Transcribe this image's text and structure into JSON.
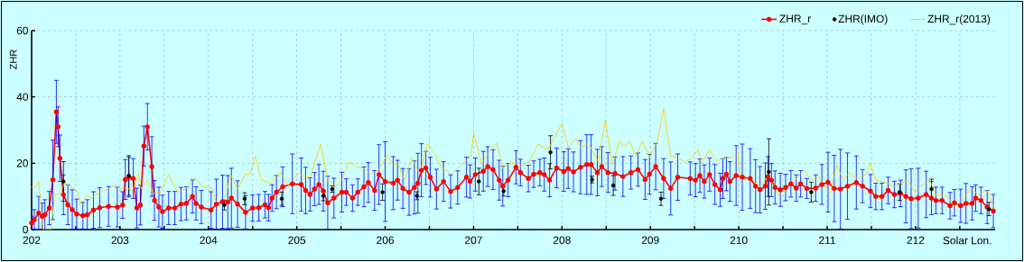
{
  "chart_data": {
    "type": "line",
    "xlabel": "Solar Lon.",
    "ylabel": "ZHR",
    "xlim": [
      202,
      212.9
    ],
    "ylim": [
      0,
      60
    ],
    "xticks": [
      202,
      {
        "value": 202.5,
        "label": null
      },
      203,
      {
        "value": 203.5,
        "label": null
      },
      204,
      {
        "value": 204.5,
        "label": null
      },
      205,
      {
        "value": 205.5,
        "label": null
      },
      206,
      {
        "value": 206.5,
        "label": null
      },
      207,
      {
        "value": 207.5,
        "label": null
      },
      208,
      {
        "value": 208.5,
        "label": null
      },
      209,
      {
        "value": 209.5,
        "label": null
      },
      210,
      {
        "value": 210.5,
        "label": null
      },
      211,
      {
        "value": 211.5,
        "label": null
      },
      212,
      {
        "value": 212.5,
        "label": null
      }
    ],
    "yticks": [
      0,
      20,
      40,
      60
    ],
    "grid": true,
    "legend": "top right",
    "series": [
      {
        "name": "ZHR_r",
        "color": "#ff0000",
        "marker": "circle",
        "x": [
          202.0,
          202.03,
          202.08,
          202.12,
          202.15,
          202.2,
          202.24,
          202.28,
          202.3,
          202.32,
          202.36,
          202.41,
          202.46,
          202.51,
          202.58,
          202.63,
          202.7,
          202.77,
          202.87,
          202.97,
          203.03,
          203.06,
          203.1,
          203.15,
          203.19,
          203.23,
          203.27,
          203.31,
          203.36,
          203.39,
          203.44,
          203.48,
          203.55,
          203.62,
          203.69,
          203.75,
          203.82,
          203.86,
          203.92,
          204.03,
          204.09,
          204.16,
          204.22,
          204.26,
          204.33,
          204.42,
          204.5,
          204.57,
          204.64,
          204.68,
          204.72,
          204.77,
          204.84,
          204.95,
          205.05,
          205.1,
          205.15,
          205.2,
          205.25,
          205.3,
          205.35,
          205.42,
          205.51,
          205.56,
          205.63,
          205.69,
          205.76,
          205.81,
          205.88,
          205.93,
          206.0,
          206.09,
          206.14,
          206.2,
          206.27,
          206.33,
          206.37,
          206.41,
          206.46,
          206.51,
          206.58,
          206.66,
          206.74,
          206.82,
          206.92,
          206.96,
          207.02,
          207.11,
          207.16,
          207.22,
          207.29,
          207.33,
          207.39,
          207.48,
          207.53,
          207.62,
          207.68,
          207.75,
          207.8,
          207.86,
          207.94,
          208.02,
          208.07,
          208.13,
          208.21,
          208.28,
          208.33,
          208.4,
          208.45,
          208.52,
          208.6,
          208.69,
          208.78,
          208.86,
          208.94,
          208.99,
          209.06,
          209.15,
          209.23,
          209.31,
          209.45,
          209.51,
          209.56,
          209.61,
          209.67,
          209.73,
          209.79,
          209.82,
          209.86,
          209.9,
          209.97,
          210.04,
          210.13,
          210.19,
          210.24,
          210.3,
          210.33,
          210.37,
          210.41,
          210.47,
          210.53,
          210.59,
          210.65,
          210.7,
          210.77,
          210.87,
          210.94,
          211.01,
          211.08,
          211.15,
          211.23,
          211.33,
          211.4,
          211.49,
          211.55,
          211.62,
          211.69,
          211.76,
          211.83,
          211.89,
          211.95,
          212.03,
          212.12,
          212.18,
          212.23,
          212.3,
          212.39,
          212.44,
          212.51,
          212.57,
          212.64,
          212.68,
          212.74,
          212.81,
          212.88
        ],
        "values": [
          2,
          3,
          5,
          4,
          4.5,
          6.5,
          15,
          35.5,
          31,
          21.5,
          10.5,
          7.5,
          6,
          4.7,
          4.2,
          4.5,
          5.9,
          6.6,
          7,
          6.8,
          7.4,
          15.1,
          15.8,
          15.4,
          6.5,
          7.4,
          25.2,
          31,
          19,
          8.8,
          6.8,
          5.4,
          6.5,
          6.5,
          7.7,
          7.9,
          10,
          7.9,
          6.8,
          5.9,
          7.7,
          8.4,
          8.3,
          9.5,
          7.7,
          5.2,
          6.5,
          6.6,
          7.5,
          6.6,
          9.5,
          11.3,
          12.9,
          13.8,
          13.6,
          11.8,
          10.6,
          12.2,
          13.6,
          11.6,
          8.1,
          9.5,
          11.3,
          11.3,
          9.5,
          11.3,
          12.9,
          14.2,
          11.8,
          16.6,
          14.5,
          14,
          14.9,
          12.4,
          11.3,
          12.7,
          14,
          17.9,
          18.6,
          15.8,
          12.2,
          14.5,
          11.5,
          12.7,
          15.8,
          14.5,
          16.6,
          17.6,
          19,
          18.1,
          14.9,
          13.1,
          14.9,
          18.8,
          17.2,
          15.4,
          16.7,
          17.2,
          16.6,
          14.9,
          18.6,
          17.5,
          18.4,
          17.4,
          18.8,
          19.6,
          19.6,
          17.2,
          19,
          17.2,
          16.9,
          16,
          17.2,
          18.1,
          15.1,
          16.7,
          19,
          15.4,
          12.4,
          15.8,
          15.4,
          14.9,
          16.3,
          14.5,
          16.6,
          13.6,
          12,
          15.4,
          16.7,
          14.5,
          16.3,
          15.8,
          15.4,
          13.1,
          12,
          13.1,
          16,
          14.9,
          12.7,
          12,
          12.7,
          13.8,
          12.5,
          13.8,
          12.4,
          12.5,
          13.6,
          14.3,
          12.4,
          12.2,
          13.1,
          14.2,
          13.1,
          11.6,
          10,
          10,
          11.8,
          10.6,
          10.9,
          10,
          9.3,
          9.5,
          10.6,
          9.5,
          8.8,
          8.8,
          7.2,
          8.1,
          7.2,
          7.9,
          7.9,
          9.5,
          8.8,
          6.8,
          5.6
        ],
        "errors": [
          2,
          3,
          5,
          4,
          4.5,
          5,
          12,
          9.5,
          6,
          7,
          6,
          6,
          6,
          4.5,
          4,
          4.5,
          5.5,
          6,
          6,
          6,
          4,
          6,
          6,
          6,
          6,
          6,
          6,
          7,
          9,
          6,
          6,
          5,
          5,
          5,
          5,
          5,
          5,
          5,
          5,
          5.5,
          7.5,
          8,
          8,
          9,
          7,
          5,
          4,
          4,
          4,
          4,
          4,
          5,
          6,
          9,
          8,
          7,
          5,
          5,
          6,
          6,
          8,
          6,
          6,
          4,
          4,
          4,
          6,
          6,
          6,
          9,
          12,
          8,
          6,
          6,
          7,
          8,
          9,
          8,
          5,
          6,
          6,
          6,
          5,
          5,
          6,
          5,
          5,
          6,
          6,
          6,
          6,
          6,
          5,
          5,
          4,
          4,
          4,
          4,
          5,
          5,
          6,
          6,
          6,
          6,
          8,
          9,
          9,
          7,
          6,
          6,
          5,
          6,
          5,
          5,
          6,
          6,
          7,
          6,
          8,
          7,
          5,
          5,
          5,
          5,
          5,
          6,
          5,
          6,
          5,
          6,
          9,
          10,
          9,
          8,
          7,
          7,
          6,
          5,
          5,
          5,
          4,
          4,
          4,
          4,
          3,
          4,
          6,
          9,
          10,
          12,
          10,
          8,
          5,
          5,
          4,
          4,
          4,
          4,
          4,
          8,
          9,
          9,
          7,
          5,
          4,
          4,
          4,
          4,
          5,
          6,
          5,
          4,
          4,
          5,
          5
        ]
      },
      {
        "name": "ZHR(IMO)",
        "type": "scatter",
        "color": "#000000",
        "marker": "circle",
        "x": [
          202.36,
          203.1,
          204.18,
          204.41,
          204.83,
          205.3,
          205.4,
          205.97,
          206.36,
          207.06,
          207.34,
          207.87,
          208.34,
          208.58,
          209.12,
          210.34,
          210.82,
          211.82,
          212.18,
          212.83
        ],
        "values": [
          14.5,
          16.3,
          7.4,
          9.3,
          9.3,
          10.2,
          12.2,
          11.3,
          10.2,
          14.5,
          11.6,
          23.3,
          15.1,
          13.3,
          9.3,
          17.4,
          11.3,
          11.3,
          12.2,
          6.2
        ],
        "errors": [
          6,
          6,
          1.5,
          1.8,
          2,
          1.5,
          1,
          2.5,
          1.2,
          4,
          1.5,
          5,
          1,
          3,
          2,
          10,
          3,
          2.5,
          3,
          2
        ]
      },
      {
        "name": "ZHR_r(2013)",
        "color": "#ffcc00",
        "marker": "none",
        "x": [
          202.0,
          202.04,
          202.08,
          202.13,
          202.22,
          202.26,
          202.32,
          202.37,
          202.46,
          202.51,
          202.56,
          202.63,
          202.68,
          202.77,
          202.87,
          202.95,
          203.0,
          203.07,
          203.14,
          203.21,
          203.24,
          203.31,
          203.38,
          203.46,
          203.55,
          203.65,
          203.74,
          203.84,
          203.94,
          204.03,
          204.11,
          204.2,
          204.25,
          204.33,
          204.42,
          204.47,
          204.53,
          204.6,
          204.71,
          204.81,
          204.91,
          205.01,
          205.15,
          205.27,
          205.35,
          205.42,
          205.51,
          205.59,
          205.69,
          205.76,
          205.83,
          205.93,
          206.02,
          206.09,
          206.15,
          206.22,
          206.3,
          206.39,
          206.48,
          206.54,
          206.63,
          206.75,
          206.88,
          206.97,
          207.0,
          207.09,
          207.17,
          207.26,
          207.33,
          207.43,
          207.5,
          207.63,
          207.73,
          207.84,
          208.0,
          208.07,
          208.16,
          208.21,
          208.3,
          208.41,
          208.49,
          208.57,
          208.65,
          208.7,
          208.76,
          208.84,
          208.91,
          208.99,
          209.08,
          209.15,
          209.23,
          209.31,
          209.38,
          209.46,
          209.54,
          209.58,
          209.67,
          209.75,
          209.82,
          209.92,
          209.99,
          210.02,
          210.13,
          210.23,
          210.33,
          210.45,
          210.57,
          210.67,
          210.74,
          210.81,
          210.91,
          211.03,
          211.11,
          211.18,
          211.25,
          211.35,
          211.44,
          211.49,
          211.55,
          211.66,
          211.76,
          211.91,
          211.99,
          212.06,
          212.16,
          212.23,
          212.34,
          212.44,
          212.54,
          212.63,
          212.71,
          212.81,
          212.9
        ],
        "values": [
          12.9,
          12.7,
          14.5,
          0,
          0,
          10.4,
          10.9,
          14,
          12.7,
          11.8,
          7.7,
          10.4,
          9.5,
          11.3,
          12.2,
          13.6,
          12.2,
          12.7,
          11.8,
          16.7,
          12.2,
          14.9,
          10.9,
          11.3,
          16.7,
          11.3,
          12.2,
          15.8,
          12.9,
          12.7,
          6.8,
          10.4,
          16.7,
          12.2,
          16.7,
          16.7,
          22.2,
          14.9,
          14,
          17.2,
          13.1,
          16.7,
          15.7,
          25.8,
          14.9,
          12.7,
          14.9,
          20.4,
          18.7,
          18.6,
          16.7,
          18.1,
          22.6,
          19.6,
          19.6,
          14.9,
          21.7,
          16.7,
          26,
          24,
          19,
          16.7,
          19.9,
          22.2,
          29.2,
          19.9,
          23.1,
          26.2,
          18.6,
          20.4,
          18.6,
          20.4,
          25.8,
          24,
          32.1,
          24.9,
          27.4,
          24.9,
          26,
          20.4,
          33,
          19.6,
          26.7,
          24.9,
          26.7,
          22.2,
          26.7,
          21.7,
          26.7,
          36.5,
          22.2,
          21.7,
          20.4,
          21.3,
          24.2,
          19.9,
          24,
          20.8,
          21.3,
          21.7,
          23.1,
          14.9,
          15.7,
          12.7,
          16.3,
          10.4,
          13.1,
          15.8,
          18.1,
          14.9,
          15.8,
          10.9,
          19.5,
          14.9,
          17.2,
          15.4,
          16.7,
          19.9,
          14.9,
          14.2,
          13.1,
          14.9,
          11.3,
          13.1,
          14.9,
          10.4,
          10.4,
          6.8,
          9.5,
          12.2,
          10.6,
          11.8,
          5.9
        ]
      }
    ]
  }
}
